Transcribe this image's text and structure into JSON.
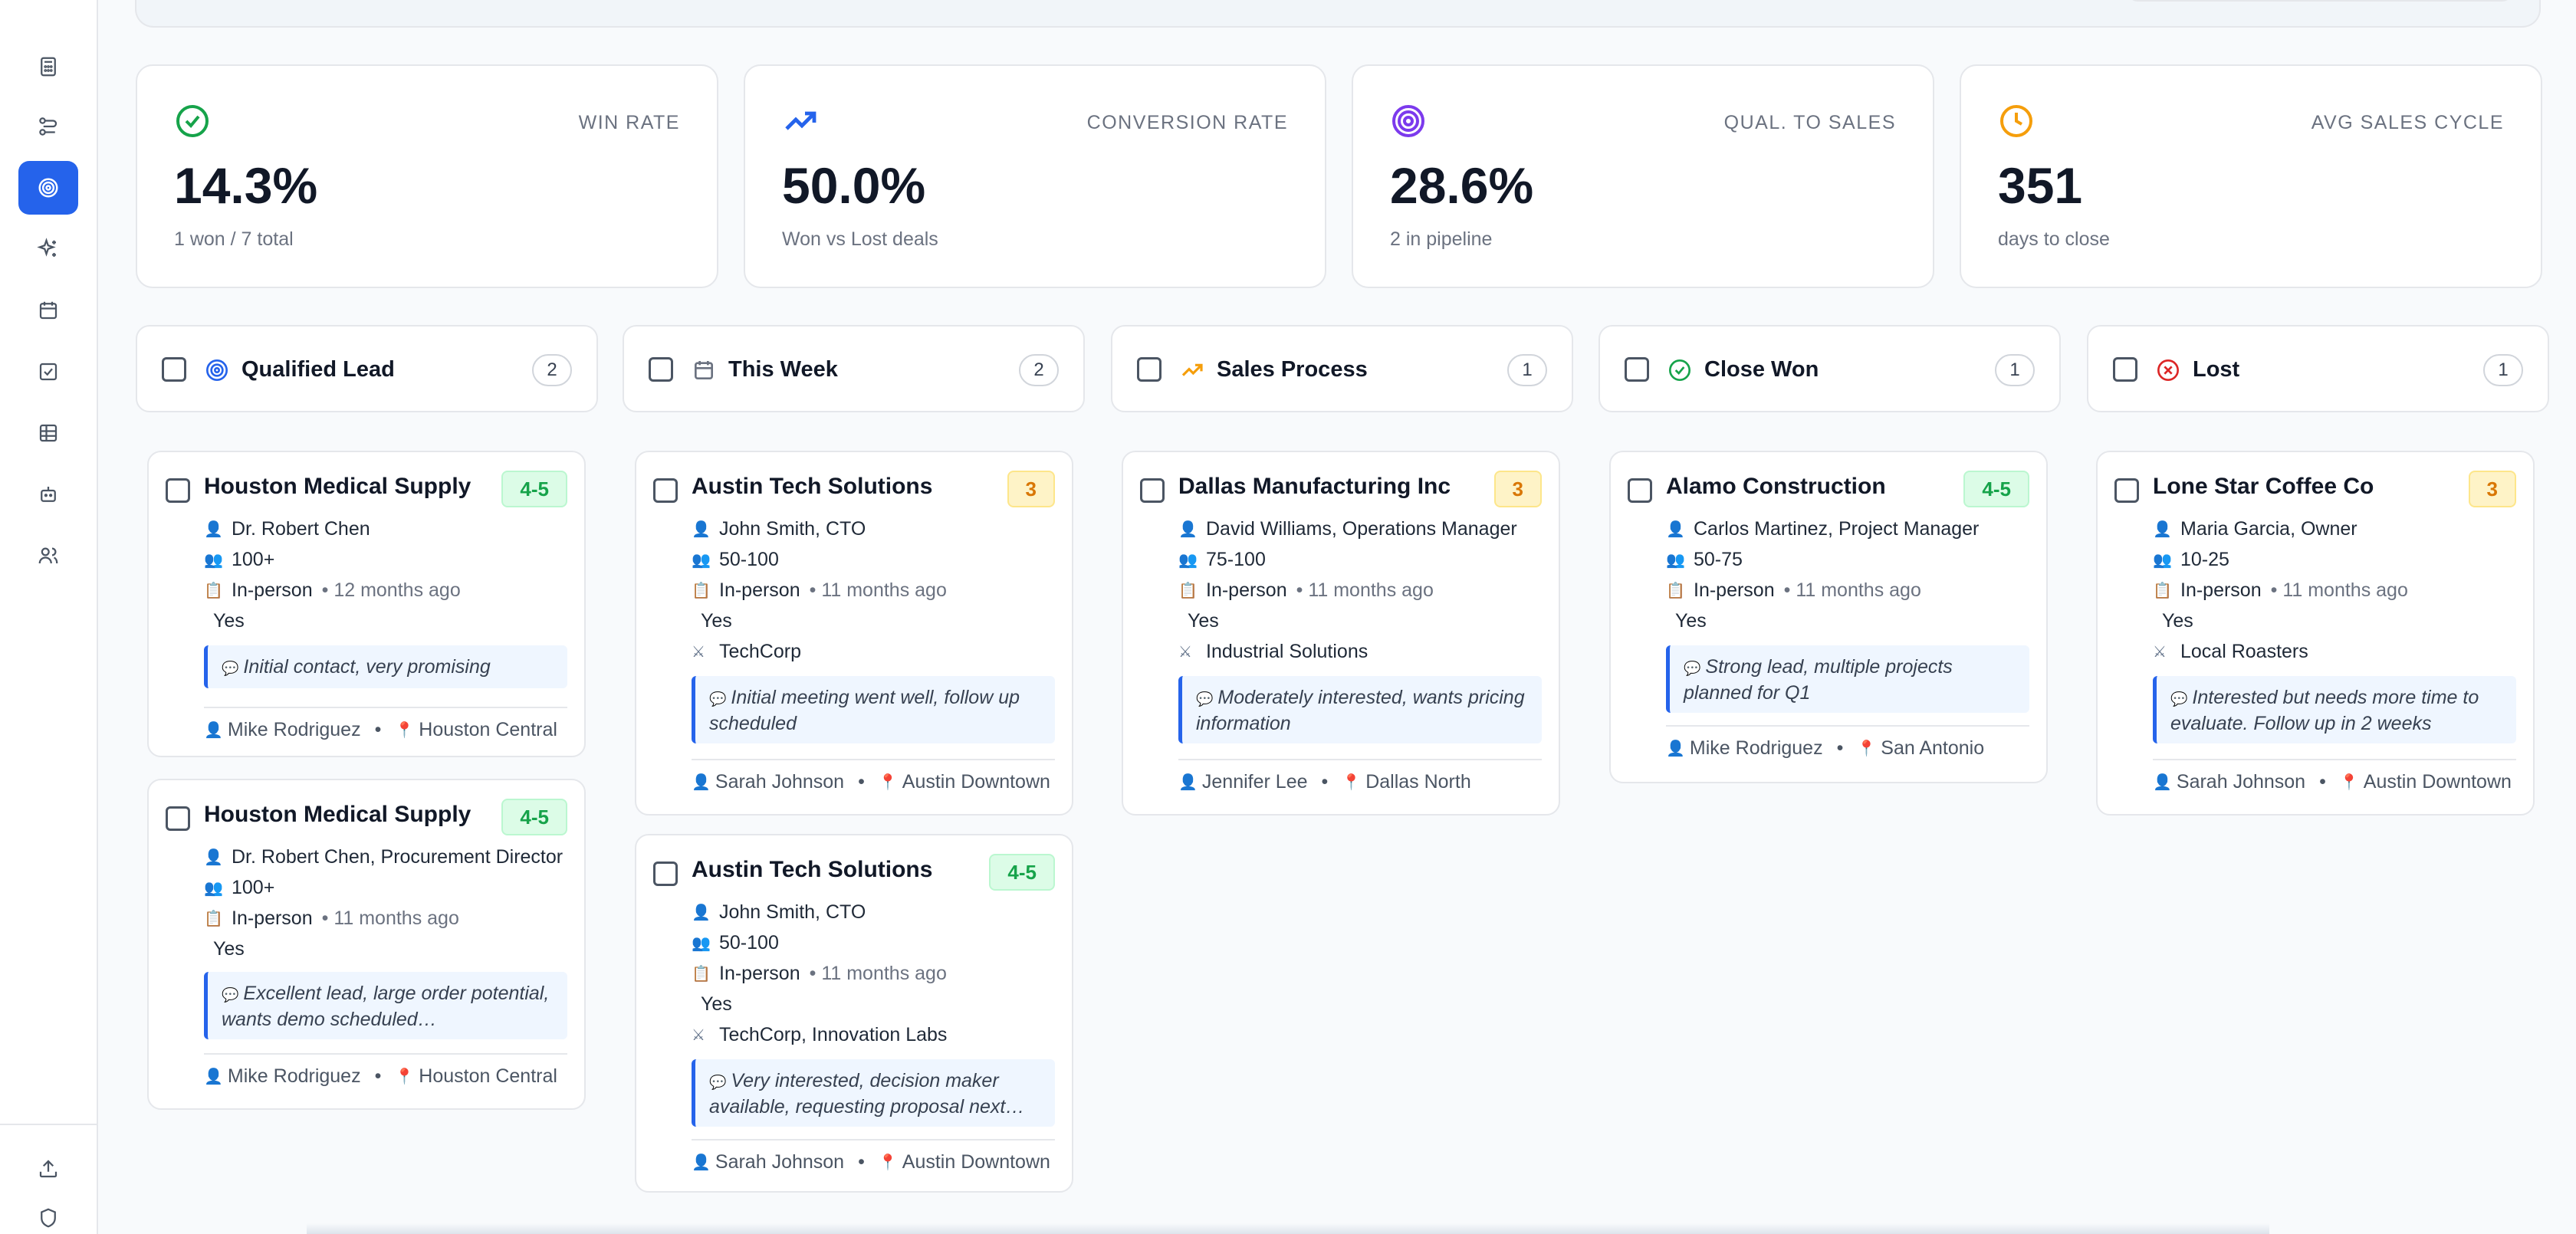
{
  "stats": [
    {
      "label": "WIN RATE",
      "value": "14.3%",
      "sub": "1 won / 7 total",
      "icon": "check-circle-icon",
      "color": "#16a34a"
    },
    {
      "label": "CONVERSION RATE",
      "value": "50.0%",
      "sub": "Won vs Lost deals",
      "icon": "trending-up-icon",
      "color": "#2563eb"
    },
    {
      "label": "QUAL. TO SALES",
      "value": "28.6%",
      "sub": "2 in pipeline",
      "icon": "target-icon",
      "color": "#7c3aed"
    },
    {
      "label": "AVG SALES CYCLE",
      "value": "351",
      "sub": "days to close",
      "icon": "clock-icon",
      "color": "#f59e0b"
    }
  ],
  "columns": [
    {
      "title": "Qualified Lead",
      "count": "2"
    },
    {
      "title": "This Week",
      "count": "2"
    },
    {
      "title": "Sales Process",
      "count": "1"
    },
    {
      "title": "Close Won",
      "count": "1"
    },
    {
      "title": "Lost",
      "count": "1"
    }
  ],
  "cards": [
    {
      "company": "Houston Medical Supply",
      "score": "4-5",
      "contact": "Dr. Robert Chen",
      "size": "100+",
      "method": "In-person",
      "time": "12 months ago",
      "yes": "Yes",
      "partners": "",
      "note": "Initial contact, very promising",
      "rep": "Mike Rodriguez",
      "location": "Houston Central"
    },
    {
      "company": "Houston Medical Supply",
      "score": "4-5",
      "contact": "Dr. Robert Chen, Procurement Director",
      "size": "100+",
      "method": "In-person",
      "time": "11 months ago",
      "yes": "Yes",
      "partners": "",
      "note": "Excellent lead, large order potential, wants demo scheduled…",
      "rep": "Mike Rodriguez",
      "location": "Houston Central"
    },
    {
      "company": "Austin Tech Solutions",
      "score": "3",
      "contact": "John Smith, CTO",
      "size": "50-100",
      "method": "In-person",
      "time": "11 months ago",
      "yes": "Yes",
      "partners": "TechCorp",
      "note": "Initial meeting went well, follow up scheduled",
      "rep": "Sarah Johnson",
      "location": "Austin Downtown"
    },
    {
      "company": "Austin Tech Solutions",
      "score": "4-5",
      "contact": "John Smith, CTO",
      "size": "50-100",
      "method": "In-person",
      "time": "11 months ago",
      "yes": "Yes",
      "partners": "TechCorp, Innovation Labs",
      "note": "Very interested, decision maker available, requesting proposal next…",
      "rep": "Sarah Johnson",
      "location": "Austin Downtown"
    },
    {
      "company": "Dallas Manufacturing Inc",
      "score": "3",
      "contact": "David Williams, Operations Manager",
      "size": "75-100",
      "method": "In-person",
      "time": "11 months ago",
      "yes": "Yes",
      "partners": "Industrial Solutions",
      "note": "Moderately interested, wants pricing information",
      "rep": "Jennifer Lee",
      "location": "Dallas North"
    },
    {
      "company": "Alamo Construction",
      "score": "4-5",
      "contact": "Carlos Martinez, Project Manager",
      "size": "50-75",
      "method": "In-person",
      "time": "11 months ago",
      "yes": "Yes",
      "partners": "",
      "note": "Strong lead, multiple projects planned for Q1",
      "rep": "Mike Rodriguez",
      "location": "San Antonio"
    },
    {
      "company": "Lone Star Coffee Co",
      "score": "3",
      "contact": "Maria Garcia, Owner",
      "size": "10-25",
      "method": "In-person",
      "time": "11 months ago",
      "yes": "Yes",
      "partners": "Local Roasters",
      "note": "Interested but needs more time to evaluate. Follow up in 2 weeks",
      "rep": "Sarah Johnson",
      "location": "Austin Downtown"
    }
  ],
  "colors": {
    "accent": "#2563eb",
    "score_high": "#16a34a",
    "score_mid": "#d97706",
    "lost": "#dc2626"
  }
}
